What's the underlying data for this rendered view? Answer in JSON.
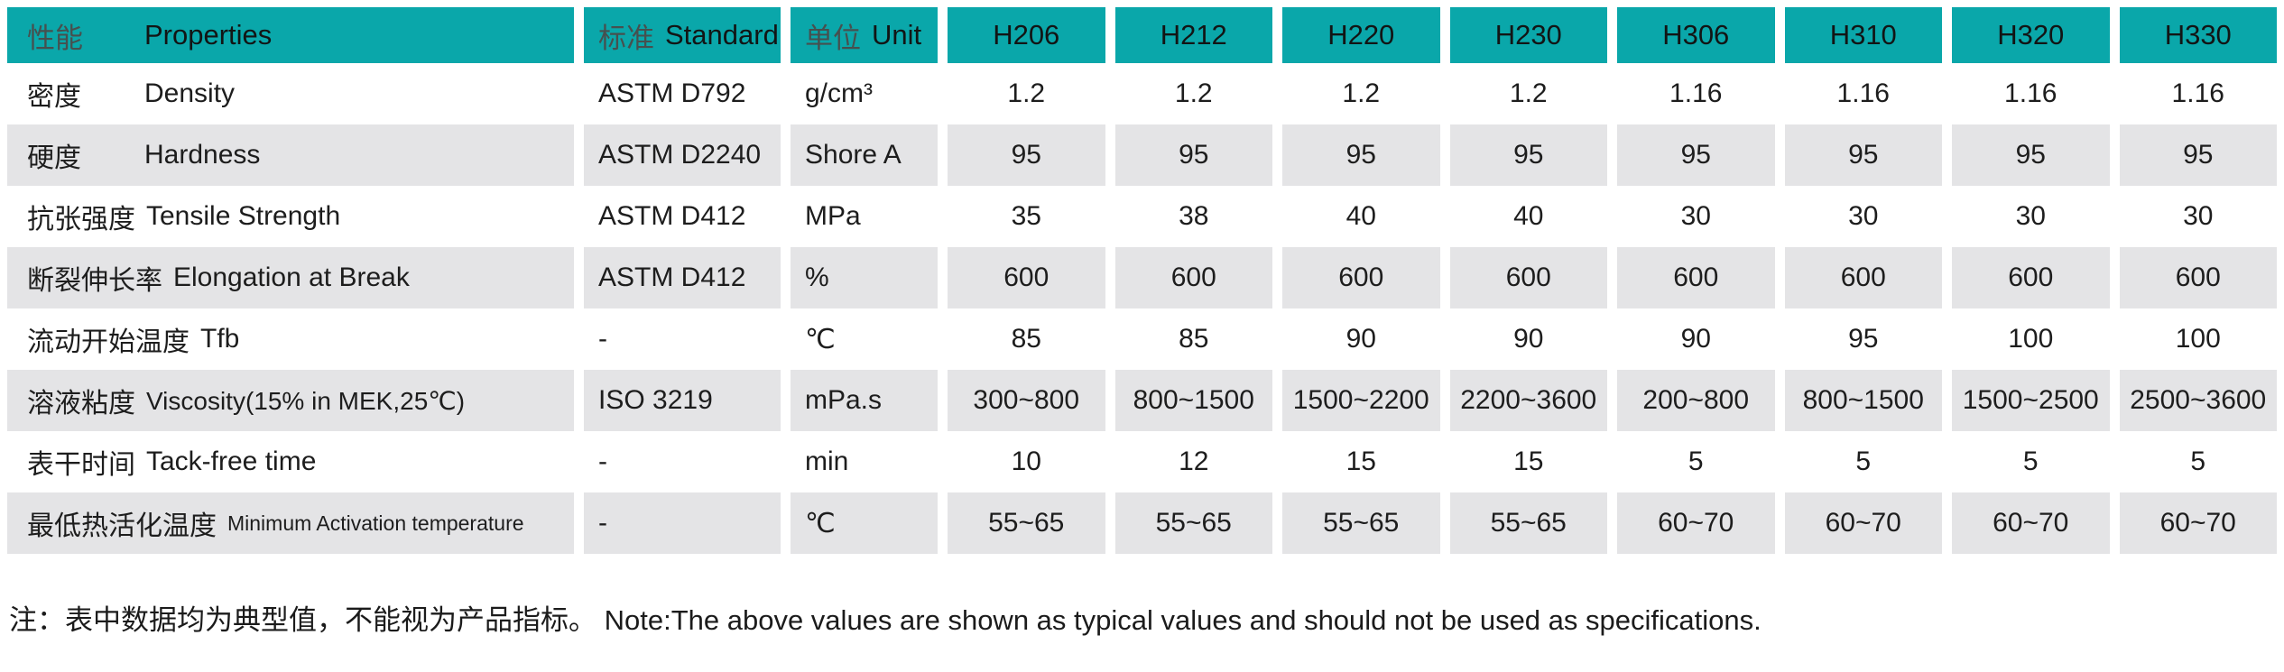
{
  "colors": {
    "header_bg": "#0aa7aa",
    "row_alt_bg": "#e4e4e6",
    "header_zh_text": "#46504f",
    "body_text": "#1d1d1d"
  },
  "table": {
    "header": {
      "properties_zh": "性能",
      "properties_en": "Properties",
      "standard_zh": "标准",
      "standard_en": "Standard",
      "unit_zh": "单位",
      "unit_en": "Unit",
      "products": [
        "H206",
        "H212",
        "H220",
        "H230",
        "H306",
        "H310",
        "H320",
        "H330"
      ]
    },
    "rows": [
      {
        "zh": "密度",
        "en": "Density",
        "standard": "ASTM D792",
        "unit": "g/cm³",
        "values": [
          "1.2",
          "1.2",
          "1.2",
          "1.2",
          "1.16",
          "1.16",
          "1.16",
          "1.16"
        ]
      },
      {
        "zh": "硬度",
        "en": "Hardness",
        "standard": "ASTM D2240",
        "unit": "Shore A",
        "values": [
          "95",
          "95",
          "95",
          "95",
          "95",
          "95",
          "95",
          "95"
        ]
      },
      {
        "zh": "抗张强度",
        "en": "Tensile Strength",
        "standard": "ASTM D412",
        "unit": "MPa",
        "values": [
          "35",
          "38",
          "40",
          "40",
          "30",
          "30",
          "30",
          "30"
        ]
      },
      {
        "zh": "断裂伸长率",
        "en": "Elongation at Break",
        "standard": "ASTM D412",
        "unit": "%",
        "values": [
          "600",
          "600",
          "600",
          "600",
          "600",
          "600",
          "600",
          "600"
        ]
      },
      {
        "zh": "流动开始温度",
        "en": "Tfb",
        "standard": "-",
        "unit": "℃",
        "values": [
          "85",
          "85",
          "90",
          "90",
          "90",
          "95",
          "100",
          "100"
        ]
      },
      {
        "zh": "溶液粘度",
        "en": "Viscosity(15% in MEK,25℃)",
        "standard": "ISO 3219",
        "unit": "mPa.s",
        "values": [
          "300~800",
          "800~1500",
          "1500~2200",
          "2200~3600",
          "200~800",
          "800~1500",
          "1500~2500",
          "2500~3600"
        ]
      },
      {
        "zh": "表干时间",
        "en": "Tack-free time",
        "standard": "-",
        "unit": "min",
        "values": [
          "10",
          "12",
          "15",
          "15",
          "5",
          "5",
          "5",
          "5"
        ]
      },
      {
        "zh": "最低热活化温度",
        "en": "Minimum Activation temperature",
        "standard": "-",
        "unit": "℃",
        "values": [
          "55~65",
          "55~65",
          "55~65",
          "55~65",
          "60~70",
          "60~70",
          "60~70",
          "60~70"
        ]
      }
    ]
  },
  "note": {
    "text": "注：表中数据均为典型值，不能视为产品指标。 Note:The above values are shown as typical values and should not be used as specifications."
  }
}
